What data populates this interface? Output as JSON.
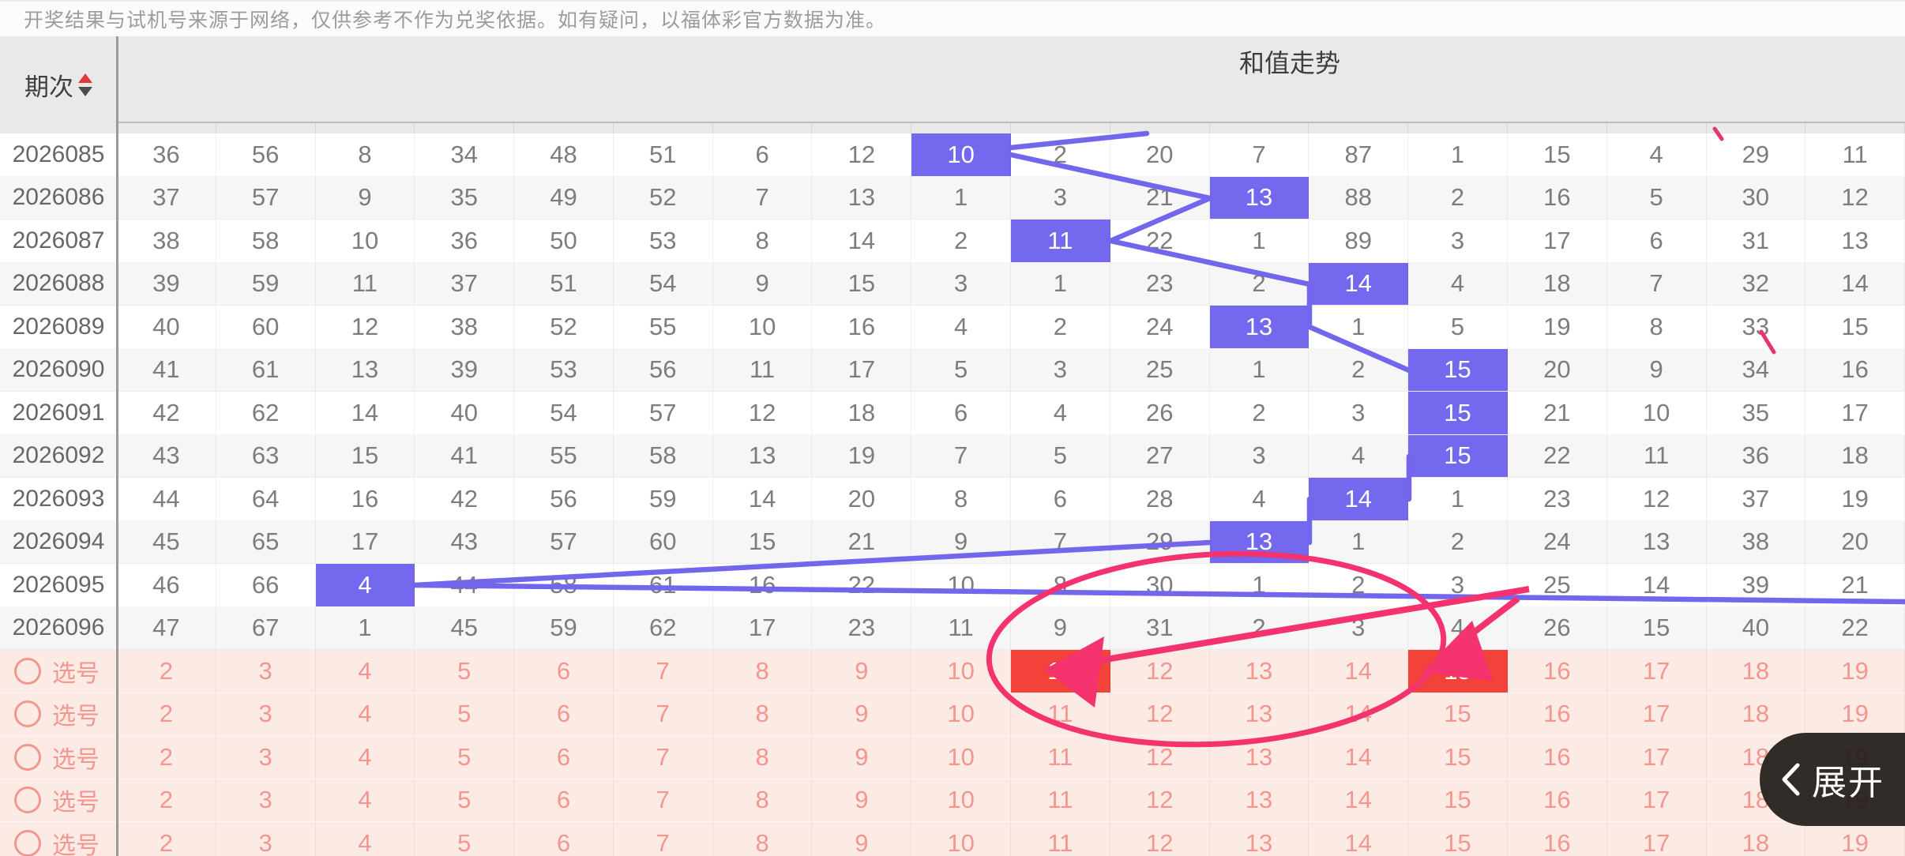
{
  "disclaimer": {
    "text": "开奖结果与试机号来源于网络，仅供参考不作为兑奖依据。如有疑问，以福体彩官方数据为准。"
  },
  "table": {
    "period_header": "期次",
    "trend_header": "和值走势",
    "columns": [
      "2",
      "3",
      "4",
      "5",
      "6",
      "7",
      "8",
      "9",
      "10",
      "11",
      "12",
      "13",
      "14",
      "15",
      "16",
      "17",
      "18",
      "19"
    ],
    "rows": [
      {
        "period": "2026085",
        "values": [
          36,
          56,
          8,
          34,
          48,
          51,
          6,
          12,
          10,
          2,
          20,
          7,
          87,
          1,
          15,
          4,
          29,
          11
        ],
        "hit": 10
      },
      {
        "period": "2026086",
        "values": [
          37,
          57,
          9,
          35,
          49,
          52,
          7,
          13,
          1,
          3,
          21,
          13,
          88,
          2,
          16,
          5,
          30,
          12
        ],
        "hit": 13
      },
      {
        "period": "2026087",
        "values": [
          38,
          58,
          10,
          36,
          50,
          53,
          8,
          14,
          2,
          11,
          22,
          1,
          89,
          3,
          17,
          6,
          31,
          13
        ],
        "hit": 11
      },
      {
        "period": "2026088",
        "values": [
          39,
          59,
          11,
          37,
          51,
          54,
          9,
          15,
          3,
          1,
          23,
          2,
          14,
          4,
          18,
          7,
          32,
          14
        ],
        "hit": 14
      },
      {
        "period": "2026089",
        "values": [
          40,
          60,
          12,
          38,
          52,
          55,
          10,
          16,
          4,
          2,
          24,
          13,
          1,
          5,
          19,
          8,
          33,
          15
        ],
        "hit": 13
      },
      {
        "period": "2026090",
        "values": [
          41,
          61,
          13,
          39,
          53,
          56,
          11,
          17,
          5,
          3,
          25,
          1,
          2,
          15,
          20,
          9,
          34,
          16
        ],
        "hit": 15
      },
      {
        "period": "2026091",
        "values": [
          42,
          62,
          14,
          40,
          54,
          57,
          12,
          18,
          6,
          4,
          26,
          2,
          3,
          15,
          21,
          10,
          35,
          17
        ],
        "hit": 15
      },
      {
        "period": "2026092",
        "values": [
          43,
          63,
          15,
          41,
          55,
          58,
          13,
          19,
          7,
          5,
          27,
          3,
          4,
          15,
          22,
          11,
          36,
          18
        ],
        "hit": 15
      },
      {
        "period": "2026093",
        "values": [
          44,
          64,
          16,
          42,
          56,
          59,
          14,
          20,
          8,
          6,
          28,
          4,
          14,
          1,
          23,
          12,
          37,
          19
        ],
        "hit": 14
      },
      {
        "period": "2026094",
        "values": [
          45,
          65,
          17,
          43,
          57,
          60,
          15,
          21,
          9,
          7,
          29,
          13,
          1,
          2,
          24,
          13,
          38,
          20
        ],
        "hit": 13
      },
      {
        "period": "2026095",
        "values": [
          46,
          66,
          4,
          44,
          58,
          61,
          16,
          22,
          10,
          8,
          30,
          1,
          2,
          3,
          25,
          14,
          39,
          21
        ],
        "hit": 4
      },
      {
        "period": "2026096",
        "values": [
          47,
          67,
          1,
          45,
          59,
          62,
          17,
          23,
          11,
          9,
          31,
          2,
          3,
          4,
          26,
          15,
          40,
          22
        ],
        "hit": null
      }
    ],
    "pick_rows": [
      {
        "label": "选号",
        "values": [
          2,
          3,
          4,
          5,
          6,
          7,
          8,
          9,
          10,
          11,
          12,
          13,
          14,
          15,
          16,
          17,
          18,
          19
        ],
        "highlights": [
          11,
          15
        ]
      },
      {
        "label": "选号",
        "values": [
          2,
          3,
          4,
          5,
          6,
          7,
          8,
          9,
          10,
          11,
          12,
          13,
          14,
          15,
          16,
          17,
          18,
          19
        ],
        "highlights": []
      },
      {
        "label": "选号",
        "values": [
          2,
          3,
          4,
          5,
          6,
          7,
          8,
          9,
          10,
          11,
          12,
          13,
          14,
          15,
          16,
          17,
          18,
          19
        ],
        "highlights": []
      },
      {
        "label": "选号",
        "values": [
          2,
          3,
          4,
          5,
          6,
          7,
          8,
          9,
          10,
          11,
          12,
          13,
          14,
          15,
          16,
          17,
          18,
          19
        ],
        "highlights": []
      },
      {
        "label": "选号",
        "values": [
          2,
          3,
          4,
          5,
          6,
          7,
          8,
          9,
          10,
          11,
          12,
          13,
          14,
          15,
          16,
          17,
          18,
          19
        ],
        "highlights": []
      }
    ]
  },
  "annotation": {
    "shape": "hand-drawn ellipse with two arrows",
    "circled_values": [
      11,
      12,
      13,
      14,
      15
    ],
    "arrow_targets": [
      11,
      15
    ]
  },
  "expand_button": {
    "label": "展开"
  },
  "colors": {
    "accent_purple": "#7468ee",
    "trend_line": "#7166ec",
    "pick_red": "#f2423a",
    "pick_pink_text": "#f3968f",
    "pick_row_bg": "#fcebe4",
    "annotation_pink": "#f4326e",
    "header_bg": "#e9e9e9",
    "row_stripe": "#f6f6f6"
  }
}
